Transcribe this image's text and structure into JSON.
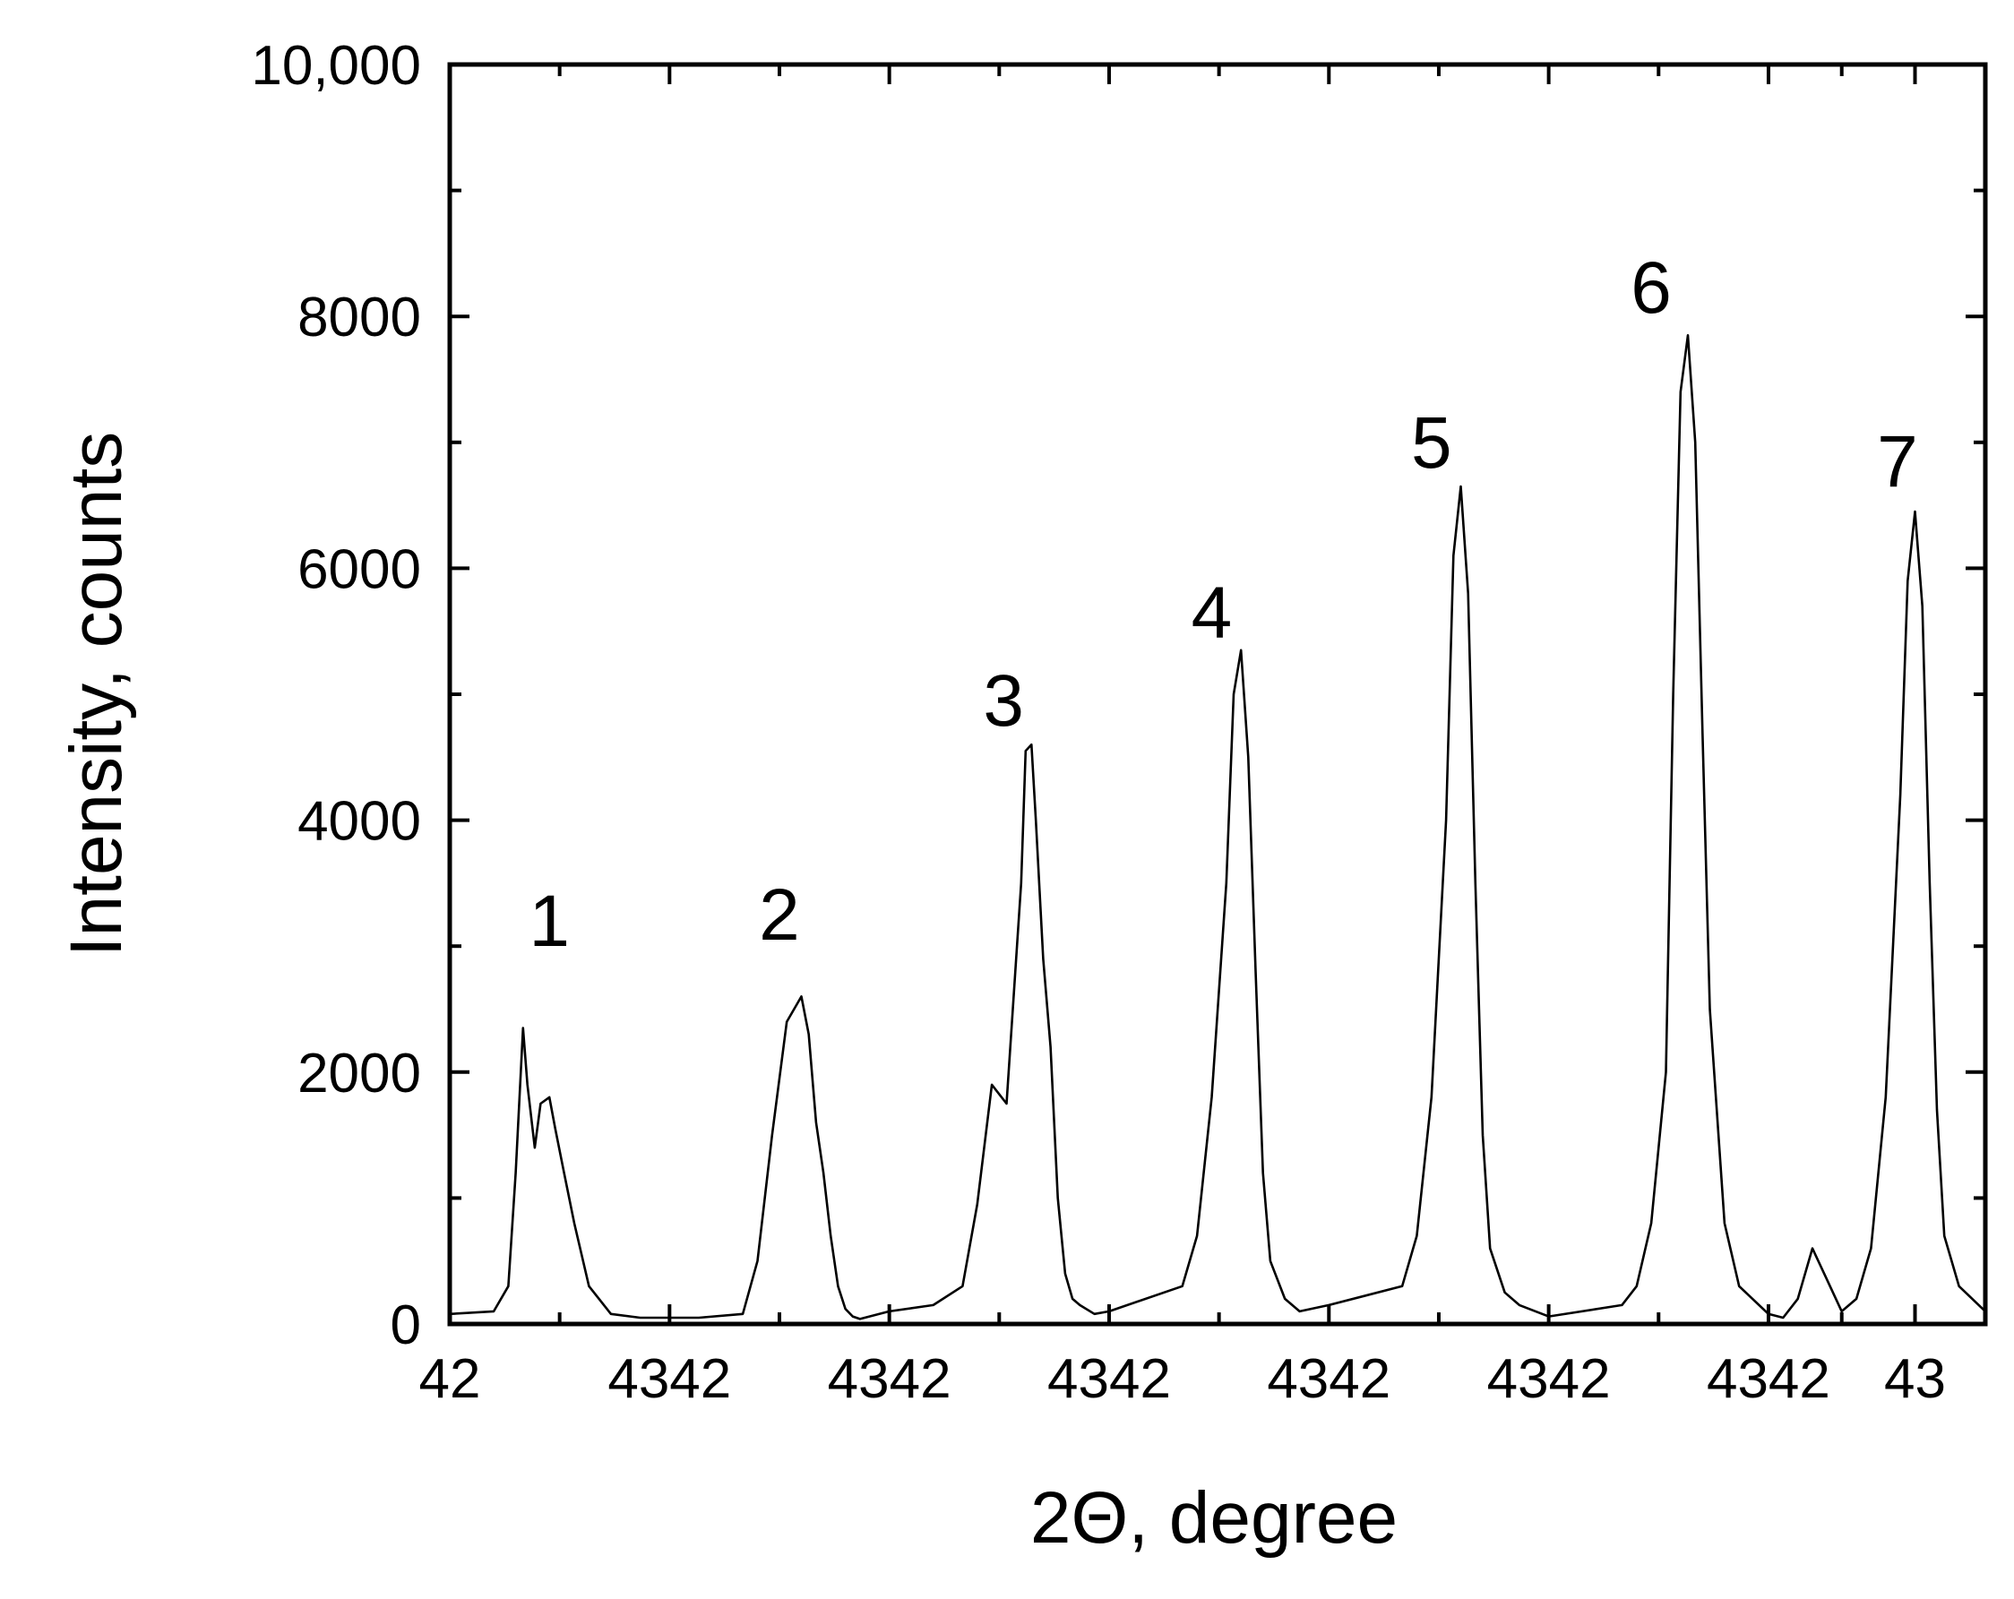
{
  "chart_data": {
    "type": "line",
    "xlabel": "2Θ, degree",
    "ylabel": "Intensity, counts",
    "xlim": [
      42.0,
      43.048
    ],
    "ylim": [
      0,
      10000
    ],
    "x_ticks": [
      {
        "value": 42.0,
        "label": "42"
      },
      {
        "value": 42.15,
        "label": "4342"
      },
      {
        "value": 42.3,
        "label": "4342"
      },
      {
        "value": 42.45,
        "label": "4342"
      },
      {
        "value": 42.6,
        "label": "4342"
      },
      {
        "value": 42.75,
        "label": "4342"
      },
      {
        "value": 42.9,
        "label": "4342"
      },
      {
        "value": 43.0,
        "label": "43"
      }
    ],
    "y_ticks": [
      {
        "value": 0,
        "label": "0"
      },
      {
        "value": 2000,
        "label": "2000"
      },
      {
        "value": 4000,
        "label": "4000"
      },
      {
        "value": 6000,
        "label": "6000"
      },
      {
        "value": 8000,
        "label": "8000"
      },
      {
        "value": 10000,
        "label": "10,000"
      }
    ],
    "series": [
      {
        "x": [
          42.0,
          42.03,
          42.04,
          42.045,
          42.05,
          42.053,
          42.058,
          42.062,
          42.068,
          42.072,
          42.078,
          42.085,
          42.095,
          42.11,
          42.13,
          42.17,
          42.2,
          42.21,
          42.22,
          42.23,
          42.24,
          42.245,
          42.25,
          42.255,
          42.26,
          42.265,
          42.27,
          42.275,
          42.28,
          42.3,
          42.33,
          42.35,
          42.36,
          42.37,
          42.38,
          42.39,
          42.393,
          42.397,
          42.4,
          42.405,
          42.41,
          42.415,
          42.42,
          42.425,
          42.43,
          42.44,
          42.45,
          42.5,
          42.51,
          42.52,
          42.53,
          42.535,
          42.54,
          42.545,
          42.55,
          42.555,
          42.56,
          42.57,
          42.58,
          42.6,
          42.65,
          42.66,
          42.67,
          42.68,
          42.685,
          42.69,
          42.695,
          42.7,
          42.705,
          42.71,
          42.72,
          42.73,
          42.75,
          42.8,
          42.81,
          42.82,
          42.83,
          42.835,
          42.84,
          42.845,
          42.85,
          42.855,
          42.86,
          42.87,
          42.88,
          42.9,
          42.91,
          42.92,
          42.93,
          42.94,
          42.95,
          42.96,
          42.97,
          42.98,
          42.99,
          42.995,
          43.0,
          43.005,
          43.01,
          43.015,
          43.02,
          43.03,
          43.048
        ],
        "y": [
          80,
          100,
          300,
          1200,
          2350,
          1900,
          1400,
          1750,
          1800,
          1550,
          1200,
          800,
          300,
          80,
          50,
          50,
          80,
          500,
          1500,
          2400,
          2600,
          2300,
          1600,
          1200,
          700,
          300,
          120,
          60,
          40,
          100,
          150,
          300,
          950,
          1900,
          1750,
          3500,
          4550,
          4600,
          4000,
          2900,
          2200,
          1000,
          400,
          200,
          150,
          80,
          100,
          300,
          700,
          1800,
          3500,
          5000,
          5350,
          4500,
          2800,
          1200,
          500,
          200,
          100,
          150,
          300,
          700,
          1800,
          4000,
          6100,
          6650,
          5800,
          3500,
          1500,
          600,
          250,
          150,
          60,
          150,
          300,
          800,
          2000,
          5000,
          7400,
          7850,
          7000,
          4700,
          2500,
          800,
          300,
          80,
          50,
          200,
          600,
          350,
          100,
          200,
          600,
          1800,
          4200,
          5900,
          6450,
          5700,
          3500,
          1700,
          700,
          300,
          100
        ]
      }
    ],
    "peak_labels": [
      {
        "text": "1",
        "x": 42.068,
        "y": 3000
      },
      {
        "text": "2",
        "x": 42.225,
        "y": 3050
      },
      {
        "text": "3",
        "x": 42.378,
        "y": 4750
      },
      {
        "text": "4",
        "x": 42.52,
        "y": 5450
      },
      {
        "text": "5",
        "x": 42.67,
        "y": 6800
      },
      {
        "text": "6",
        "x": 42.82,
        "y": 8030
      },
      {
        "text": "7",
        "x": 42.988,
        "y": 6650
      }
    ],
    "grid": false,
    "legend": false
  }
}
